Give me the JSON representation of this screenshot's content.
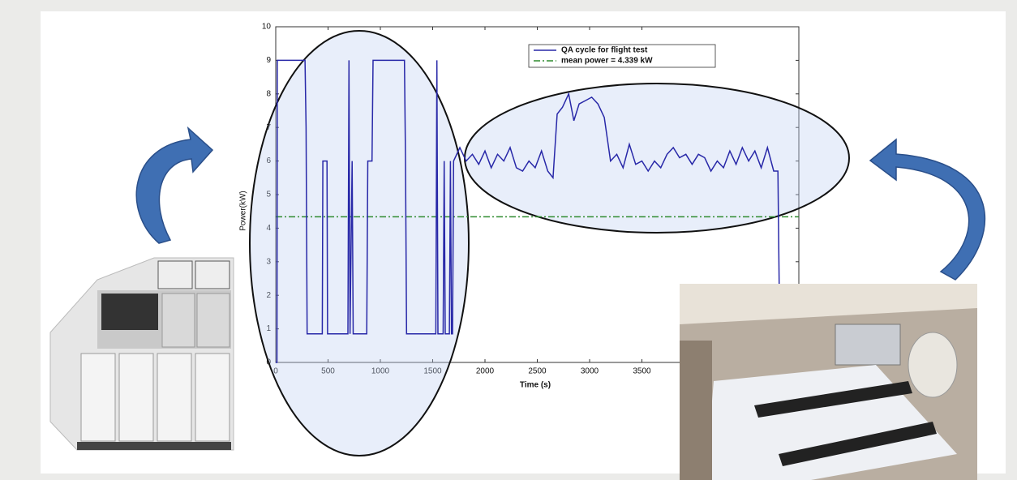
{
  "chart_data": {
    "type": "line",
    "xlabel": "Time (s)",
    "ylabel": "Power(kW)",
    "xlim": [
      0,
      5000
    ],
    "ylim": [
      0,
      10
    ],
    "xticks": [
      0,
      500,
      1000,
      1500,
      2000,
      2500,
      3000,
      3500
    ],
    "yticks": [
      0,
      1,
      2,
      3,
      4,
      5,
      6,
      7,
      8,
      9,
      10
    ],
    "legend": "top-right",
    "x": [
      0,
      12,
      15,
      280,
      290,
      300,
      445,
      450,
      490,
      495,
      690,
      700,
      710,
      730,
      740,
      870,
      880,
      920,
      930,
      1230,
      1240,
      1250,
      1530,
      1540,
      1550,
      1600,
      1610,
      1620,
      1660,
      1670,
      1680,
      1690,
      1700,
      1760,
      1820,
      1880,
      1940,
      2000,
      2060,
      2120,
      2180,
      2240,
      2300,
      2360,
      2420,
      2480,
      2540,
      2600,
      2650,
      2690,
      2740,
      2800,
      2850,
      2900,
      2960,
      3020,
      3080,
      3140,
      3200,
      3260,
      3320,
      3380,
      3440,
      3500,
      3560,
      3620,
      3680,
      3740,
      3800,
      3860,
      3920,
      3980,
      4040,
      4100,
      4160,
      4220,
      4280,
      4340,
      4400,
      4460,
      4520,
      4580,
      4640,
      4700,
      4760,
      4800,
      4820
    ],
    "series": [
      {
        "name": "QA cycle for flight test",
        "color": "#2828a8",
        "values": [
          0,
          0,
          9,
          9,
          7,
          0.85,
          0.85,
          6,
          6,
          0.85,
          0.85,
          9,
          0.85,
          6,
          0.85,
          0.85,
          6,
          6,
          9,
          9,
          6,
          0.85,
          0.85,
          9,
          0.85,
          0.85,
          6,
          0.85,
          0.85,
          6,
          0.85,
          0.85,
          6.0,
          6.4,
          6.0,
          6.2,
          5.9,
          6.3,
          5.8,
          6.2,
          6.0,
          6.4,
          5.8,
          5.7,
          6.0,
          5.8,
          6.3,
          5.7,
          5.5,
          7.4,
          7.6,
          8.0,
          7.2,
          7.7,
          7.8,
          7.9,
          7.7,
          7.3,
          6.0,
          6.2,
          5.8,
          6.5,
          5.9,
          6.0,
          5.7,
          6.0,
          5.8,
          6.2,
          6.4,
          6.1,
          6.2,
          5.9,
          6.2,
          6.1,
          5.7,
          6.0,
          5.8,
          6.3,
          5.9,
          6.4,
          6.0,
          6.3,
          5.8,
          6.4,
          5.7,
          5.7,
          0
        ]
      }
    ],
    "reference_line": {
      "name": "mean power = 4.339 kW",
      "value": 4.339,
      "color": "#2e8b2e"
    }
  }
}
